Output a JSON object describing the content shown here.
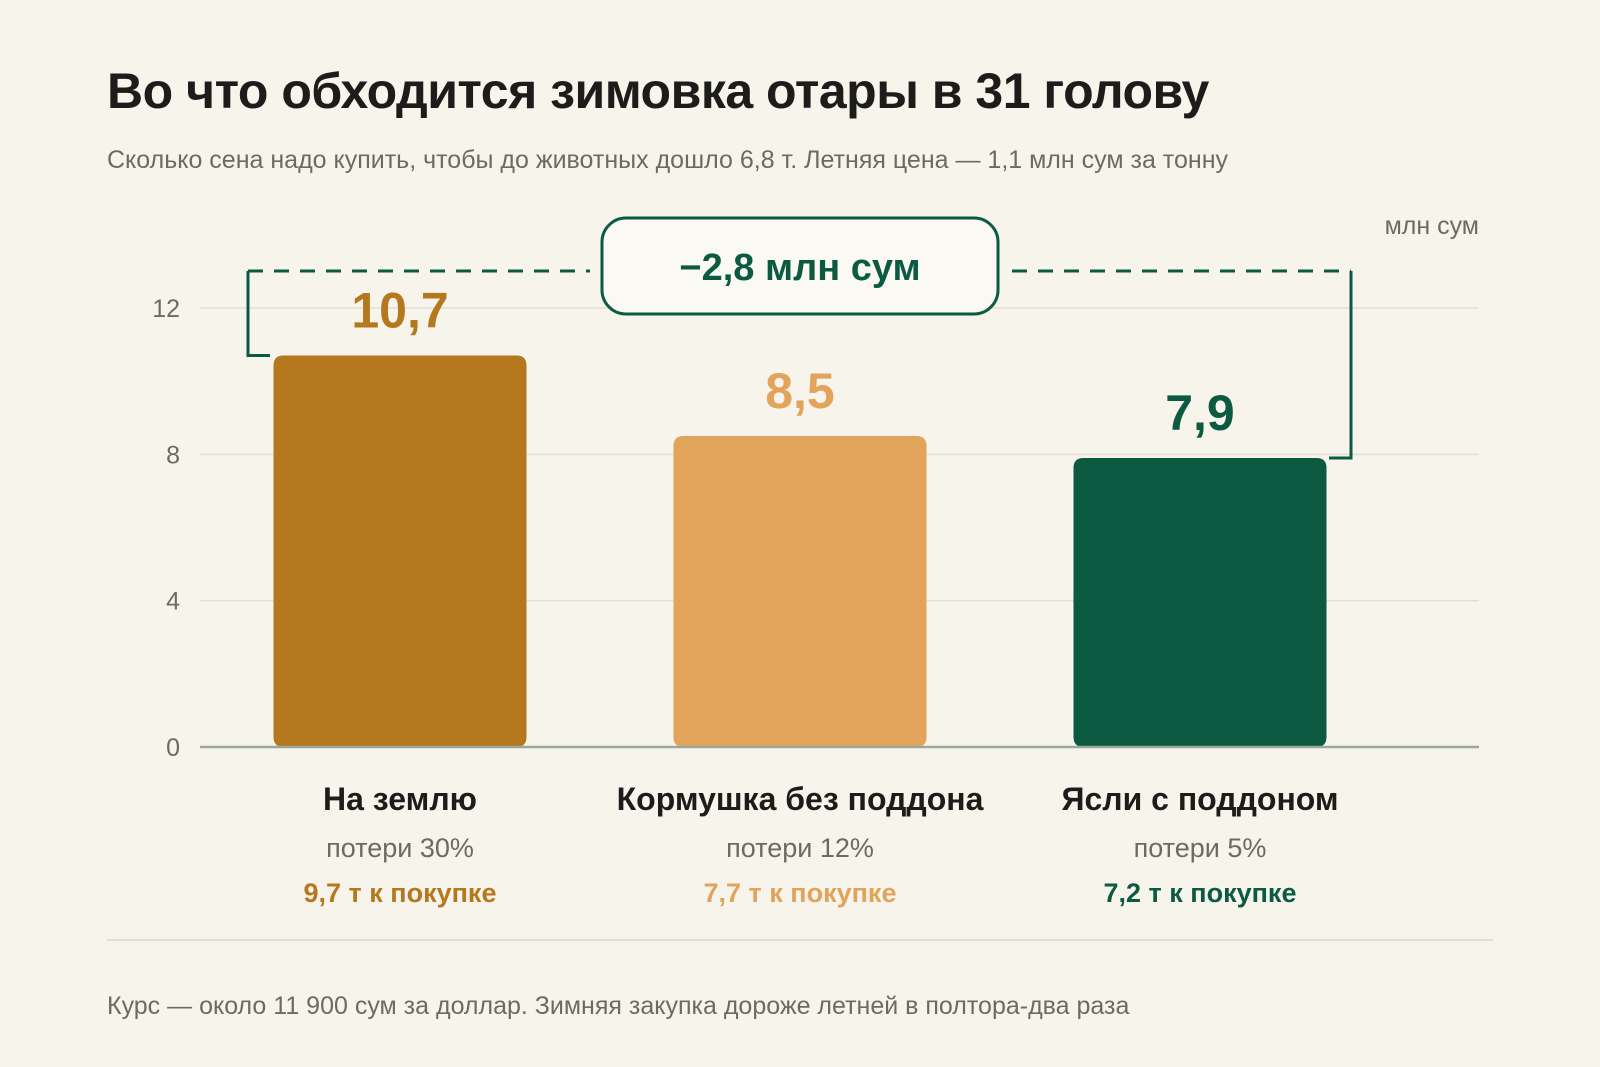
{
  "title": "Во что обходится зимовка отары в 31 голову",
  "subtitle": "Сколько сена надо купить, чтобы до животных дошло 6,8 т. Летняя цена — 1,1 млн сум за тонну",
  "footnote": "Курс — около 11 900 сум за доллар. Зимняя закупка дороже летней в полтора-два раза",
  "colors": {
    "background": "#f7f4ec",
    "grid": "#e2ded3",
    "axis": "#9aa89a",
    "bracket": "#0d5a43"
  },
  "chart_data": {
    "type": "bar",
    "unit": "млн сум",
    "ylim": [
      0,
      13.2
    ],
    "yticks": [
      0,
      4,
      8,
      12
    ],
    "grid": true,
    "categories": [
      "На землю",
      "Кормушка без поддона",
      "Ясли с поддоном"
    ],
    "values": [
      10.7,
      8.5,
      7.9
    ],
    "value_labels": [
      "10,7",
      "8,5",
      "7,9"
    ],
    "losses": [
      "потери 30%",
      "потери 12%",
      "потери 5%"
    ],
    "purchases": [
      "9,7 т к покупке",
      "7,7 т к покупке",
      "7,2 т к покупке"
    ],
    "colors": [
      "#b5781f",
      "#e2a45a",
      "#0d5a43"
    ],
    "difference": {
      "label": "−2,8 млн сум",
      "from_bar": 0,
      "to_bar": 2
    }
  }
}
